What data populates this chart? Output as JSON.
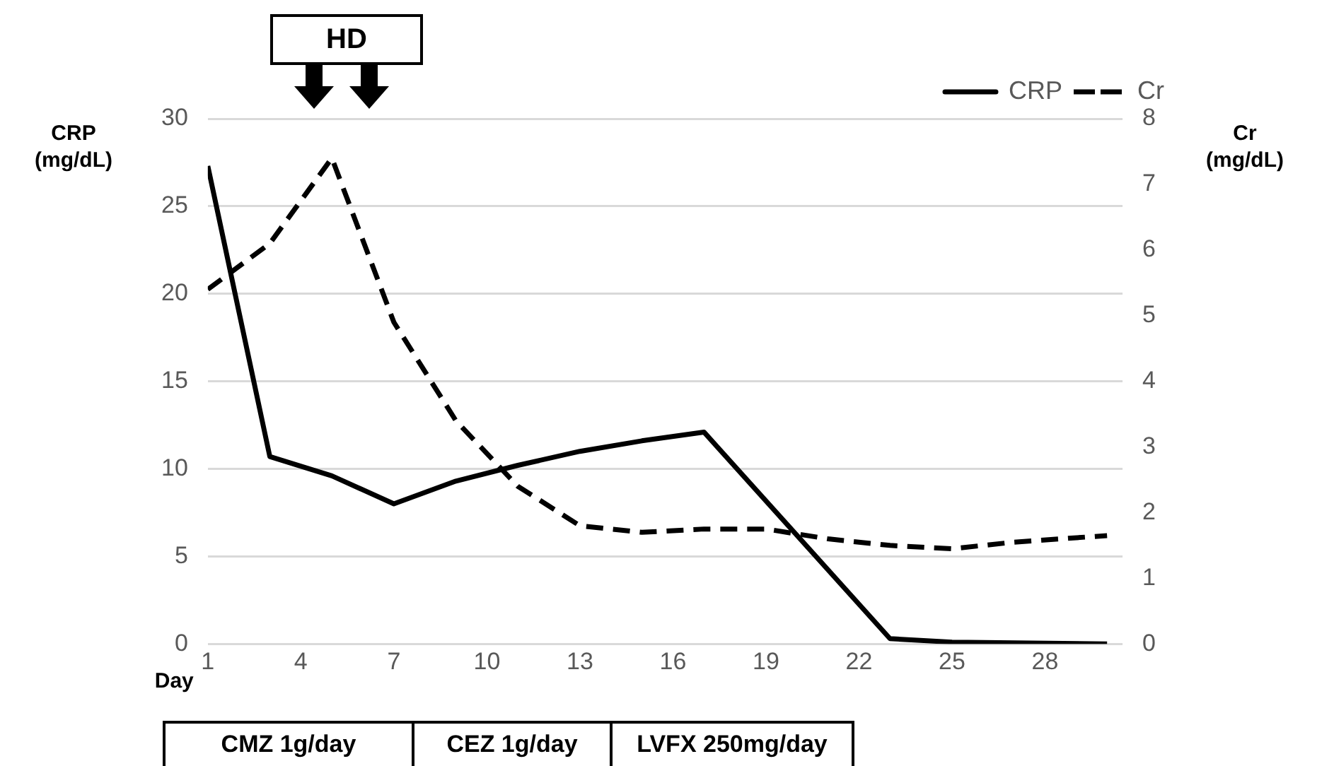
{
  "chart_data": {
    "type": "line",
    "xlabel": "Day",
    "ylabel": "CRP (mg/dL)",
    "y2label": "Cr (mg/dL)",
    "xlim": [
      1,
      30.5
    ],
    "xticks": [
      1,
      4,
      7,
      10,
      13,
      16,
      19,
      22,
      25,
      28
    ],
    "ylim": [
      0,
      30
    ],
    "yticks": [
      0,
      5,
      10,
      15,
      20,
      25,
      30
    ],
    "y2lim": [
      0,
      8
    ],
    "y2ticks": [
      0,
      1,
      2,
      3,
      4,
      5,
      6,
      7,
      8
    ],
    "grid": "y",
    "legend": "top right",
    "marker": "none",
    "series": [
      {
        "name": "CRP",
        "color": "#000000",
        "line_style": "solid",
        "x": [
          1,
          3,
          5,
          7,
          9,
          11,
          13,
          15,
          17,
          23,
          25,
          30
        ],
        "values": [
          27.3,
          10.7,
          9.6,
          8.0,
          9.3,
          10.2,
          11.0,
          11.6,
          12.1,
          0.3,
          0.1,
          0
        ]
      },
      {
        "name": "Cr",
        "color": "#000000",
        "line_style": "dashed",
        "axis": "y2",
        "x": [
          1,
          3,
          5,
          7,
          9,
          11,
          13,
          15,
          17,
          19,
          21,
          23,
          25,
          27,
          30
        ],
        "values": [
          5.4,
          6.1,
          7.4,
          4.9,
          3.4,
          2.4,
          1.8,
          1.7,
          1.75,
          1.75,
          1.6,
          1.5,
          1.45,
          1.55,
          1.65
        ]
      }
    ],
    "annotations": [
      "HD",
      "CMZ 1g/day",
      "CEZ 1g/day",
      "LVFX 250mg/day"
    ]
  }
}
